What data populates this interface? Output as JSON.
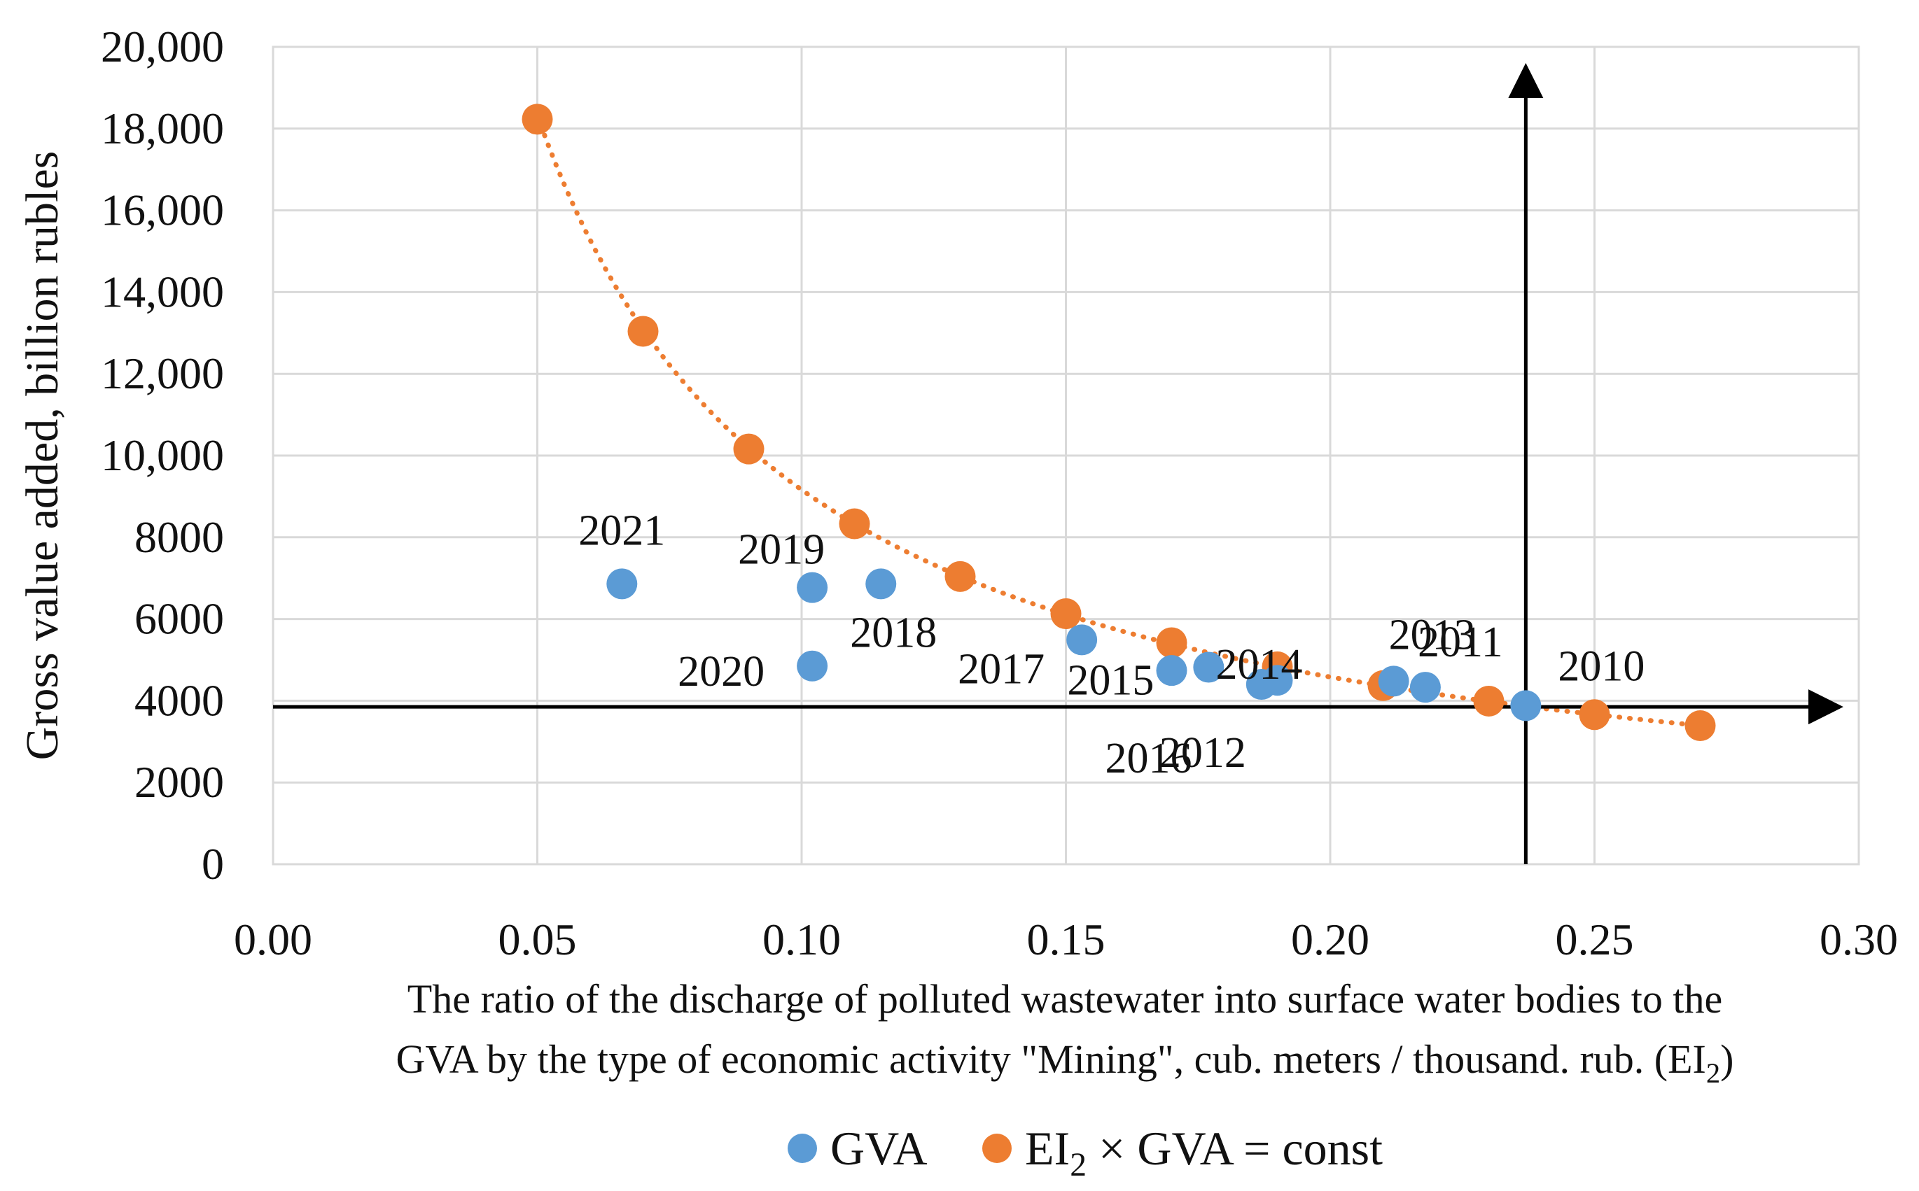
{
  "chart_data": {
    "type": "scatter",
    "title": "",
    "xlabel_line1": "The ratio of the discharge of polluted wastewater into surface water bodies to the",
    "xlabel_line2_prefix": "GVA by the type of economic activity \"Mining\", cub. meters / thousand. rub. (EI",
    "xlabel_sub": "2",
    "xlabel_line2_suffix": ")",
    "ylabel": "Gross value added, billion rubles",
    "xlim": [
      0,
      0.3
    ],
    "ylim": [
      0,
      20000
    ],
    "x_ticks": [
      0.0,
      0.05,
      0.1,
      0.15,
      0.2,
      0.25,
      0.3
    ],
    "x_tick_labels": [
      "0.00",
      "0.05",
      "0.10",
      "0.15",
      "0.20",
      "0.25",
      "0.30"
    ],
    "y_ticks": [
      0,
      2000,
      4000,
      6000,
      8000,
      10000,
      12000,
      14000,
      16000,
      18000,
      20000
    ],
    "y_tick_labels": [
      "0",
      "2000",
      "4000",
      "6000",
      "8000",
      "10,000",
      "12,000",
      "14,000",
      "16,000",
      "18,000",
      "20,000"
    ],
    "grid": true,
    "legend_position": "bottom",
    "reference_axes": {
      "x": 0.237,
      "y": 3850
    },
    "series": [
      {
        "name": "GVA",
        "color": "#5b9bd5",
        "points": [
          {
            "x": 0.237,
            "y": 3880,
            "label": "2010"
          },
          {
            "x": 0.218,
            "y": 4330,
            "label": "2011"
          },
          {
            "x": 0.187,
            "y": 4400,
            "label": "2012"
          },
          {
            "x": 0.212,
            "y": 4480,
            "label": "2013"
          },
          {
            "x": 0.19,
            "y": 4500,
            "label": "2014"
          },
          {
            "x": 0.177,
            "y": 4820,
            "label": "2015"
          },
          {
            "x": 0.17,
            "y": 4740,
            "label": "2016"
          },
          {
            "x": 0.153,
            "y": 5490,
            "label": "2017"
          },
          {
            "x": 0.115,
            "y": 6860,
            "label": "2018"
          },
          {
            "x": 0.102,
            "y": 6770,
            "label": "2019"
          },
          {
            "x": 0.102,
            "y": 4850,
            "label": "2020"
          },
          {
            "x": 0.066,
            "y": 6860,
            "label": "2021"
          }
        ]
      },
      {
        "name_prefix": "EI",
        "name_sub": "2",
        "name_suffix": " × GVA = const",
        "color": "#ed7d31",
        "points": [
          {
            "x": 0.05,
            "y": 18230
          },
          {
            "x": 0.07,
            "y": 13040
          },
          {
            "x": 0.09,
            "y": 10160
          },
          {
            "x": 0.11,
            "y": 8330
          },
          {
            "x": 0.13,
            "y": 7040
          },
          {
            "x": 0.15,
            "y": 6130
          },
          {
            "x": 0.17,
            "y": 5420
          },
          {
            "x": 0.19,
            "y": 4830
          },
          {
            "x": 0.21,
            "y": 4370
          },
          {
            "x": 0.23,
            "y": 3990
          },
          {
            "x": 0.25,
            "y": 3660
          },
          {
            "x": 0.27,
            "y": 3390
          }
        ]
      }
    ]
  }
}
